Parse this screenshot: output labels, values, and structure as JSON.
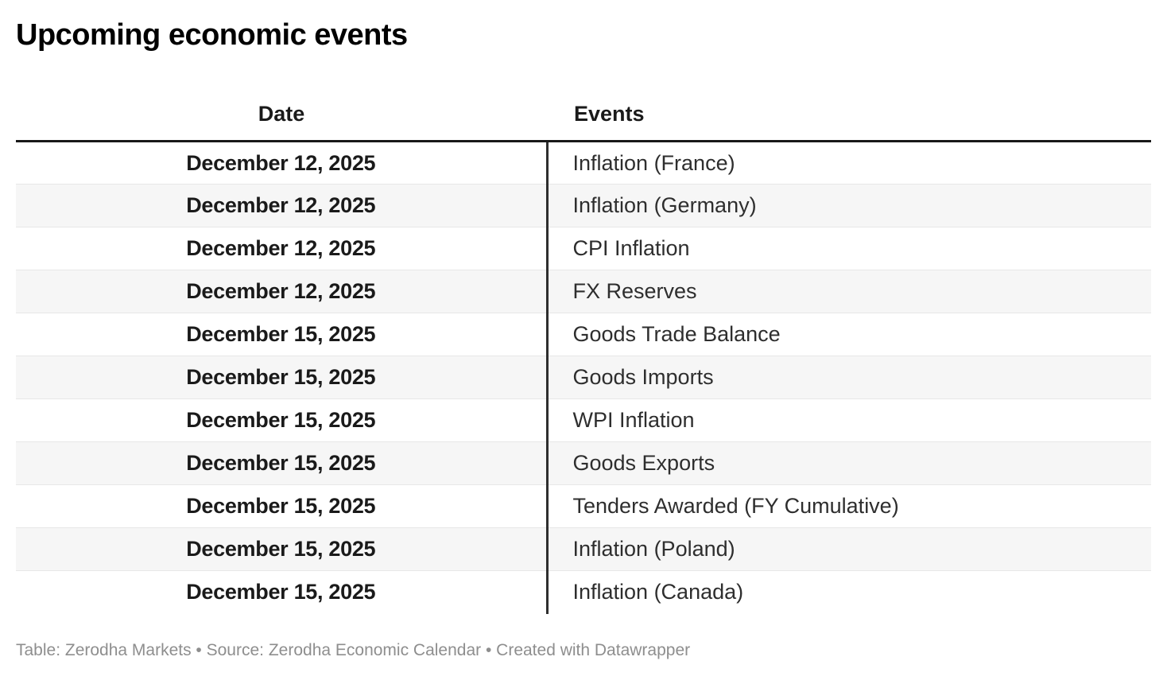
{
  "chart_data": {
    "type": "table",
    "title": "Upcoming economic events",
    "columns": [
      "Date",
      "Events"
    ],
    "rows": [
      [
        "December 12, 2025",
        "Inflation (France)"
      ],
      [
        "December 12, 2025",
        "Inflation (Germany)"
      ],
      [
        "December 12, 2025",
        "CPI Inflation"
      ],
      [
        "December 12, 2025",
        "FX Reserves"
      ],
      [
        "December 15, 2025",
        "Goods Trade Balance"
      ],
      [
        "December 15, 2025",
        "Goods Imports"
      ],
      [
        "December 15, 2025",
        "WPI Inflation"
      ],
      [
        "December 15, 2025",
        "Goods Exports"
      ],
      [
        "December 15, 2025",
        "Tenders Awarded (FY Cumulative)"
      ],
      [
        "December 15, 2025",
        "Inflation (Poland)"
      ],
      [
        "December 15, 2025",
        "Inflation (Canada)"
      ]
    ],
    "layout_hints": {
      "zebra_striping": true,
      "date_column_align": "center",
      "events_column_align": "left",
      "column_divider": true
    }
  },
  "footer": {
    "text": "Table: Zerodha Markets • Source: Zerodha Economic Calendar • Created with Datawrapper"
  },
  "colors": {
    "header_text": "#1a1a1a",
    "header_border": "#191919",
    "column_divider": "#2e2e2e",
    "date_text": "#1a1a1a",
    "event_text": "#2e2e2e",
    "row_stripe": "#f6f6f6",
    "row_border": "#e7e7e7",
    "footer_text": "#8e8e8e"
  }
}
